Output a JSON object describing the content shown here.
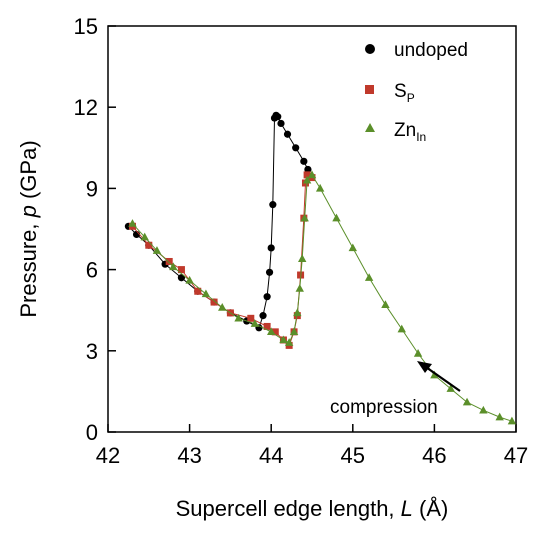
{
  "chart_data": {
    "type": "scatter",
    "title": "",
    "xlabel_prefix": "Supercell edge length, ",
    "xlabel_var": "L",
    "xlabel_unit": " (Å)",
    "ylabel_prefix": "Pressure, ",
    "ylabel_var": "p",
    "ylabel_unit": " (GPa)",
    "xlim": [
      42,
      47
    ],
    "ylim": [
      0,
      15
    ],
    "xticks": [
      42,
      43,
      44,
      45,
      46,
      47
    ],
    "yticks": [
      0,
      3,
      6,
      9,
      12,
      15
    ],
    "grid": false,
    "legend_position": "top-right",
    "annotation": "compression",
    "series": [
      {
        "name": "undoped",
        "marker": "circle",
        "color": "#000000",
        "x": [
          42.25,
          42.35,
          42.5,
          42.7,
          42.9,
          43.1,
          43.3,
          43.5,
          43.7,
          43.85,
          43.9,
          43.95,
          43.98,
          44.0,
          44.02,
          44.04,
          44.06,
          44.08,
          44.12,
          44.2,
          44.3,
          44.4,
          44.45
        ],
        "y": [
          7.6,
          7.3,
          6.9,
          6.2,
          5.7,
          5.2,
          4.8,
          4.4,
          4.1,
          3.85,
          4.3,
          5.0,
          5.9,
          6.8,
          8.4,
          11.6,
          11.7,
          11.65,
          11.4,
          11.0,
          10.5,
          10.0,
          9.7
        ]
      },
      {
        "name": "S",
        "name_sub": "P",
        "marker": "square",
        "color": "#c0392b",
        "x": [
          42.3,
          42.5,
          42.75,
          42.9,
          43.1,
          43.3,
          43.5,
          43.75,
          43.95,
          44.05,
          44.15,
          44.22,
          44.28,
          44.32,
          44.36,
          44.4,
          44.42,
          44.44,
          44.5
        ],
        "y": [
          7.6,
          6.9,
          6.3,
          6.0,
          5.2,
          4.8,
          4.4,
          4.2,
          3.9,
          3.7,
          3.4,
          3.2,
          3.7,
          4.3,
          5.8,
          7.9,
          9.2,
          9.5,
          9.4
        ]
      },
      {
        "name": "Zn",
        "name_sub": "In",
        "marker": "triangle",
        "color": "#5b8f2a",
        "x": [
          42.3,
          42.45,
          42.6,
          42.8,
          43.0,
          43.2,
          43.4,
          43.6,
          43.8,
          44.0,
          44.15,
          44.22,
          44.28,
          44.32,
          44.35,
          44.38,
          44.41,
          44.44,
          44.5,
          44.6,
          44.8,
          45.0,
          45.2,
          45.4,
          45.6,
          45.8,
          46.0,
          46.2,
          46.4,
          46.6,
          46.8,
          46.95
        ],
        "y": [
          7.7,
          7.2,
          6.7,
          6.1,
          5.6,
          5.1,
          4.6,
          4.2,
          4.0,
          3.7,
          3.4,
          3.3,
          3.7,
          4.4,
          5.3,
          6.4,
          7.9,
          9.3,
          9.5,
          9.0,
          7.9,
          6.8,
          5.7,
          4.7,
          3.8,
          2.9,
          2.1,
          1.6,
          1.1,
          0.8,
          0.55,
          0.4
        ]
      }
    ]
  }
}
